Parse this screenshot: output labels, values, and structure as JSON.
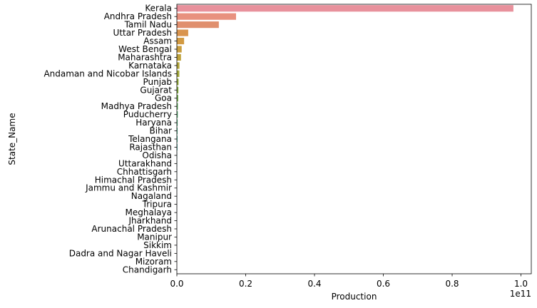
{
  "chart_data": {
    "type": "bar",
    "orientation": "horizontal",
    "xlabel": "Production",
    "ylabel": "State_Name",
    "x_offset_text": "1e11",
    "xlim": [
      0,
      1.03
    ],
    "x_ticks": [
      0.0,
      0.2,
      0.4,
      0.6,
      0.8,
      1.0
    ],
    "x_tick_labels": [
      "0.0",
      "0.2",
      "0.4",
      "0.6",
      "0.8",
      "1.0"
    ],
    "grid": false,
    "categories": [
      "Kerala",
      "Andhra Pradesh",
      "Tamil Nadu",
      "Uttar Pradesh",
      "Assam",
      "West Bengal",
      "Maharashtra",
      "Karnataka",
      "Andaman and Nicobar Islands",
      "Punjab",
      "Gujarat",
      "Goa",
      "Madhya Pradesh",
      "Puducherry",
      "Haryana",
      "Bihar",
      "Telangana ",
      "Rajasthan",
      "Odisha",
      "Uttarakhand",
      "Chhattisgarh",
      "Himachal Pradesh",
      "Jammu and Kashmir ",
      "Nagaland",
      "Tripura",
      "Meghalaya",
      "Jharkhand",
      "Arunachal Pradesh",
      "Manipur",
      "Sikkim",
      "Dadra and Nagar Haveli",
      "Mizoram",
      "Chandigarh"
    ],
    "values": [
      0.978,
      0.172,
      0.122,
      0.033,
      0.021,
      0.014,
      0.012,
      0.0075,
      0.0072,
      0.005,
      0.0045,
      0.004,
      0.003,
      0.0027,
      0.0022,
      0.002,
      0.002,
      0.0018,
      0.001,
      0.0008,
      0.0006,
      0.0005,
      0.0004,
      0.0003,
      0.0003,
      0.0002,
      0.0002,
      0.0002,
      0.0001,
      0.0001,
      0.0001,
      0.0001,
      5e-05
    ],
    "colors": [
      "#e8919c",
      "#e8917f",
      "#e08f6e",
      "#d9944e",
      "#d29a43",
      "#c99e3f",
      "#bea23b",
      "#b1a53a",
      "#a3a83a",
      "#94ab3a",
      "#84ad40",
      "#72af4d",
      "#5eb25c",
      "#4fb26e",
      "#48b27c",
      "#45b28a",
      "#45b297",
      "#47b1a3",
      "#49b0ae",
      "#4bb0b9",
      "#4eafc4",
      "#52aed0",
      "#5aabdb",
      "#66a7e3",
      "#79a1ea",
      "#8f9aee",
      "#a595ef",
      "#b790ee",
      "#c78cea",
      "#d58ae3",
      "#e08ad8",
      "#e68dca",
      "#e990b8"
    ]
  }
}
